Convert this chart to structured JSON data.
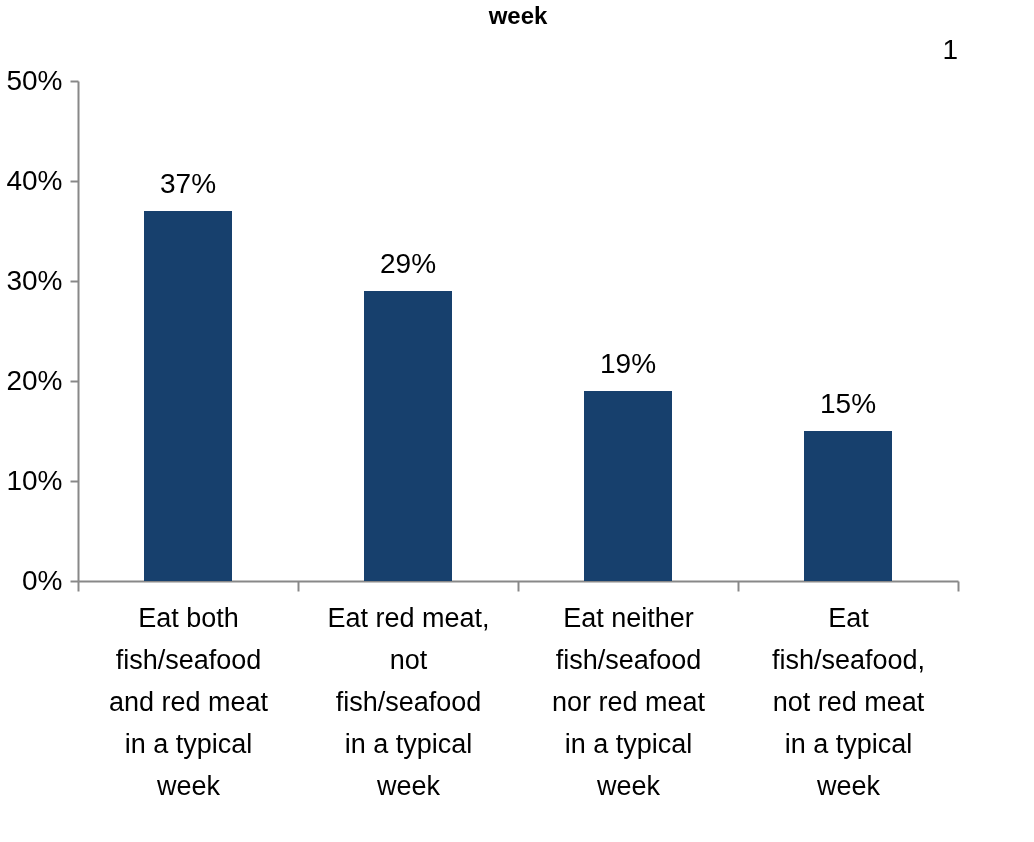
{
  "chart_data": {
    "type": "bar",
    "title": "week",
    "categories": [
      "Eat both fish/seafood and red meat in a typical week",
      "Eat red meat, not fish/seafood in a typical week",
      "Eat neither fish/seafood nor red meat in a typical week",
      "Eat fish/seafood, not red meat in a typical week"
    ],
    "series": [
      {
        "color": "#17406d",
        "values": [
          37,
          29,
          19,
          15
        ],
        "value_labels": [
          "37%",
          "29%",
          "19%",
          "15%"
        ]
      }
    ],
    "ylim": [
      0,
      50
    ],
    "yticks": [
      {
        "value": 0,
        "label": "0%"
      },
      {
        "value": 10,
        "label": "10%"
      },
      {
        "value": 20,
        "label": "20%"
      },
      {
        "value": 30,
        "label": "30%"
      },
      {
        "value": 40,
        "label": "40%"
      },
      {
        "value": 50,
        "label": "50%"
      }
    ],
    "annotations": [
      "1"
    ]
  }
}
